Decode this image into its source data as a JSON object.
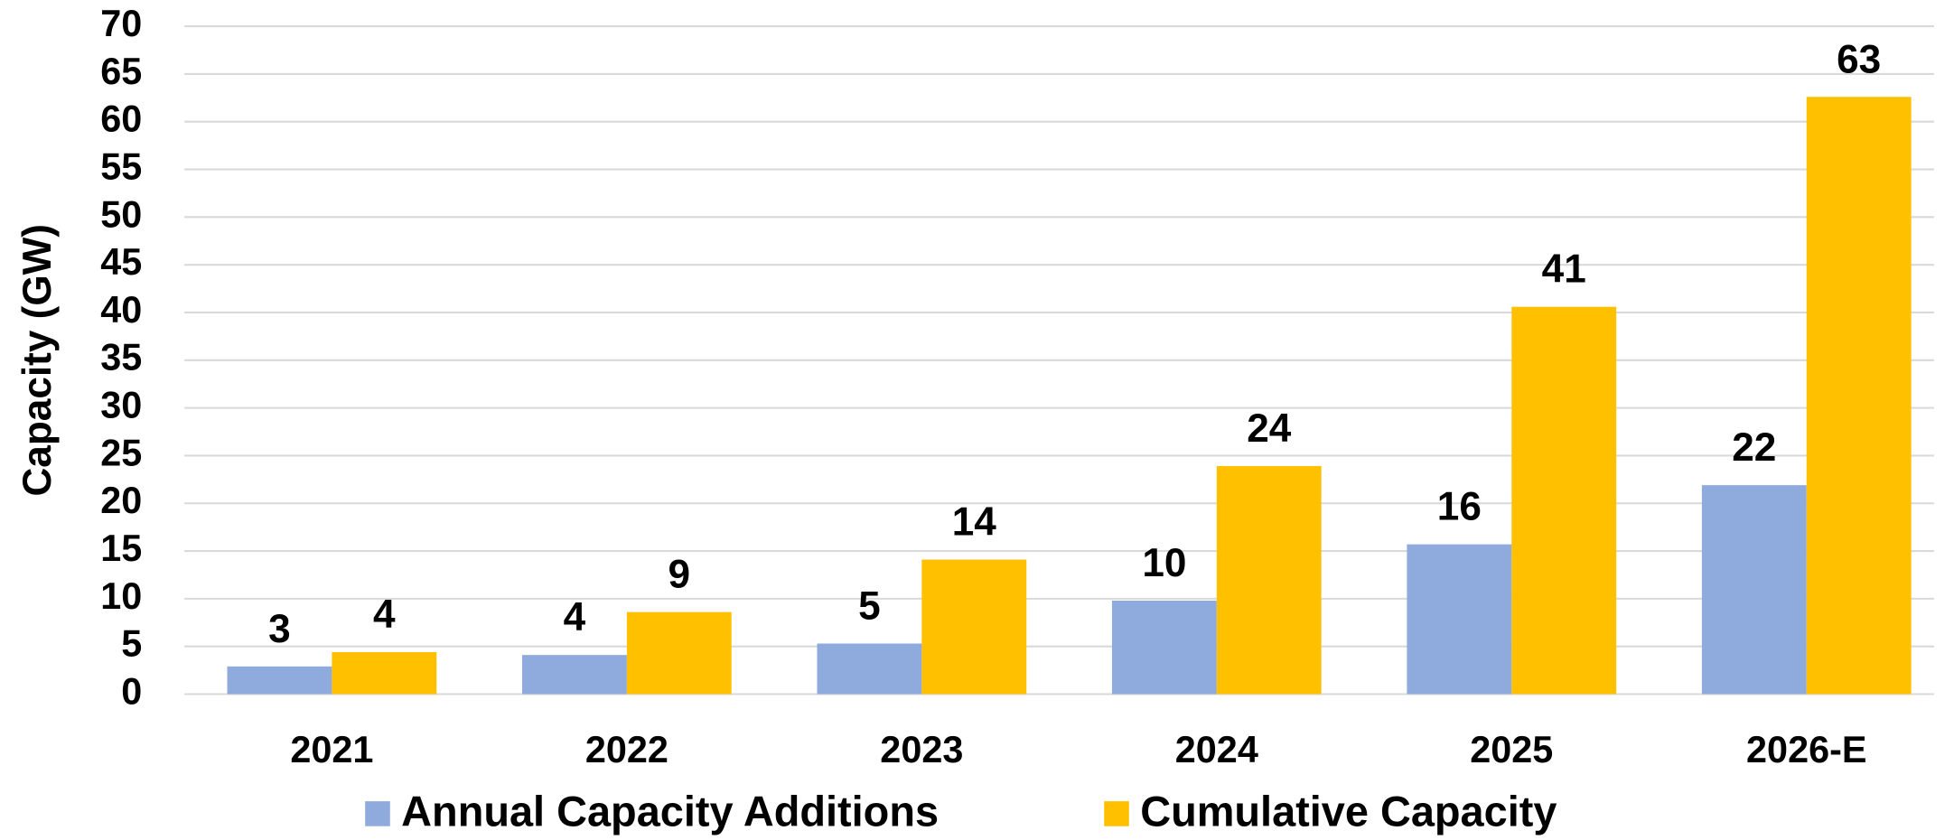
{
  "chart_data": {
    "type": "bar",
    "y_label": "Capacity (GW)",
    "categories": [
      "2021",
      "2022",
      "2023",
      "2024",
      "2025",
      "2026-E"
    ],
    "series": [
      {
        "name": "Annual Capacity Additions",
        "color": "#8faadc",
        "values": [
          2.9,
          4.1,
          5.3,
          9.8,
          15.7,
          21.9
        ],
        "value_labels": [
          "3",
          "4",
          "5",
          "10",
          "16",
          "22"
        ]
      },
      {
        "name": "Cumulative Capacity",
        "color": "#ffc000",
        "values": [
          4.4,
          8.6,
          14.1,
          23.9,
          40.6,
          62.6
        ],
        "value_labels": [
          "4",
          "9",
          "14",
          "24",
          "41",
          "63"
        ]
      }
    ],
    "ylim": [
      0,
      70
    ],
    "yticks": [
      0,
      5,
      10,
      15,
      20,
      25,
      30,
      35,
      40,
      45,
      50,
      55,
      60,
      65,
      70
    ],
    "grid": true,
    "legend": "bottom"
  }
}
